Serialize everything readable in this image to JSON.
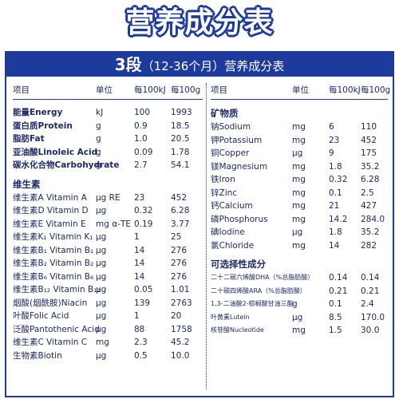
{
  "title": "营养成分表",
  "stage": {
    "big": "3段",
    "rest": "（12-36个月）营养成分表"
  },
  "headers": {
    "item": "项目",
    "unit": "单位",
    "per100kj": "每100kJ",
    "per100g": "每100g"
  },
  "left": {
    "basics": [
      {
        "name": "能量Energy",
        "unit": "kJ",
        "v1": "100",
        "v2": "1993"
      },
      {
        "name": "蛋白质Protein",
        "unit": "g",
        "v1": "0.9",
        "v2": "18.5"
      },
      {
        "name": "脂肪Fat",
        "unit": "g",
        "v1": "1.0",
        "v2": "20.5"
      },
      {
        "name": "亚油酸Linoleic Acid",
        "unit": "g",
        "v1": "0.09",
        "v2": "1.78"
      },
      {
        "name": "碳水化合物Carbohydrate",
        "unit": "g",
        "v1": "2.7",
        "v2": "54.1"
      }
    ],
    "vitamins_title": "维生素",
    "vitamins": [
      {
        "name": "维生素A Vitamin A",
        "unit": "μg RE",
        "v1": "23",
        "v2": "452"
      },
      {
        "name": "维生素D Vitamin D",
        "unit": "μg",
        "v1": "0.32",
        "v2": "6.28"
      },
      {
        "name": "维生素E Vitamin E",
        "unit": "mg α-TE",
        "v1": "0.19",
        "v2": "3.77"
      },
      {
        "name": "维生素K₁ Vitamin K₁",
        "unit": "μg",
        "v1": "1",
        "v2": "25"
      },
      {
        "name": "维生素B₁ Vitamin B₁",
        "unit": "μg",
        "v1": "14",
        "v2": "276"
      },
      {
        "name": "维生素B₂ Vitamin B₂",
        "unit": "μg",
        "v1": "14",
        "v2": "276"
      },
      {
        "name": "维生素B₆ Vitamin B₆",
        "unit": "μg",
        "v1": "14",
        "v2": "276"
      },
      {
        "name": "维生素B₁₂ Vitamin B₁₂",
        "unit": "μg",
        "v1": "0.05",
        "v2": "1.01"
      },
      {
        "name": "烟酸(烟酰胺)Niacin",
        "unit": "μg",
        "v1": "139",
        "v2": "2763"
      },
      {
        "name": "叶酸Folic Acid",
        "unit": "μg",
        "v1": "1",
        "v2": "20"
      },
      {
        "name": "泛酸Pantothenic Acid",
        "unit": "μg",
        "v1": "88",
        "v2": "1758"
      },
      {
        "name": "维生素C Vitamin C",
        "unit": "mg",
        "v1": "2.3",
        "v2": "45.2"
      },
      {
        "name": "生物素Biotin",
        "unit": "μg",
        "v1": "0.5",
        "v2": "10.0"
      }
    ]
  },
  "right": {
    "minerals_title": "矿物质",
    "minerals": [
      {
        "name": "钠Sodium",
        "unit": "mg",
        "v1": "6",
        "v2": "110"
      },
      {
        "name": "钾Potassium",
        "unit": "mg",
        "v1": "23",
        "v2": "452"
      },
      {
        "name": "铜Copper",
        "unit": "μg",
        "v1": "9",
        "v2": "175"
      },
      {
        "name": "镁Magnesium",
        "unit": "mg",
        "v1": "1.8",
        "v2": "35.2"
      },
      {
        "name": "铁Iron",
        "unit": "mg",
        "v1": "0.32",
        "v2": "6.28"
      },
      {
        "name": "锌Zinc",
        "unit": "mg",
        "v1": "0.1",
        "v2": "2.5"
      },
      {
        "name": "钙Calcium",
        "unit": "mg",
        "v1": "21",
        "v2": "427"
      },
      {
        "name": "磷Phosphorus",
        "unit": "mg",
        "v1": "14.2",
        "v2": "284.0"
      },
      {
        "name": "碘Iodine",
        "unit": "μg",
        "v1": "1.8",
        "v2": "35.2"
      },
      {
        "name": "氯Chloride",
        "unit": "mg",
        "v1": "14",
        "v2": "282"
      }
    ],
    "optional_title": "可选择性成分",
    "optional": [
      {
        "name": "二十二碳六烯酸DHA（%总脂肪酸）",
        "unit": "",
        "v1": "0.14",
        "v2": "0.14"
      },
      {
        "name": "二十碳四烯酸ARA（%总脂肪酸）",
        "unit": "",
        "v1": "0.21",
        "v2": "0.21"
      },
      {
        "name": "1,3-二油酸2-棕榈酸甘油三酯",
        "unit": "g",
        "v1": "0.1",
        "v2": "2.4"
      },
      {
        "name": "叶黄素Lutein",
        "unit": "μg",
        "v1": "8.5",
        "v2": "170.0"
      },
      {
        "name": "核苷酸Nucleotide",
        "unit": "mg",
        "v1": "1.5",
        "v2": "30.0"
      }
    ]
  }
}
